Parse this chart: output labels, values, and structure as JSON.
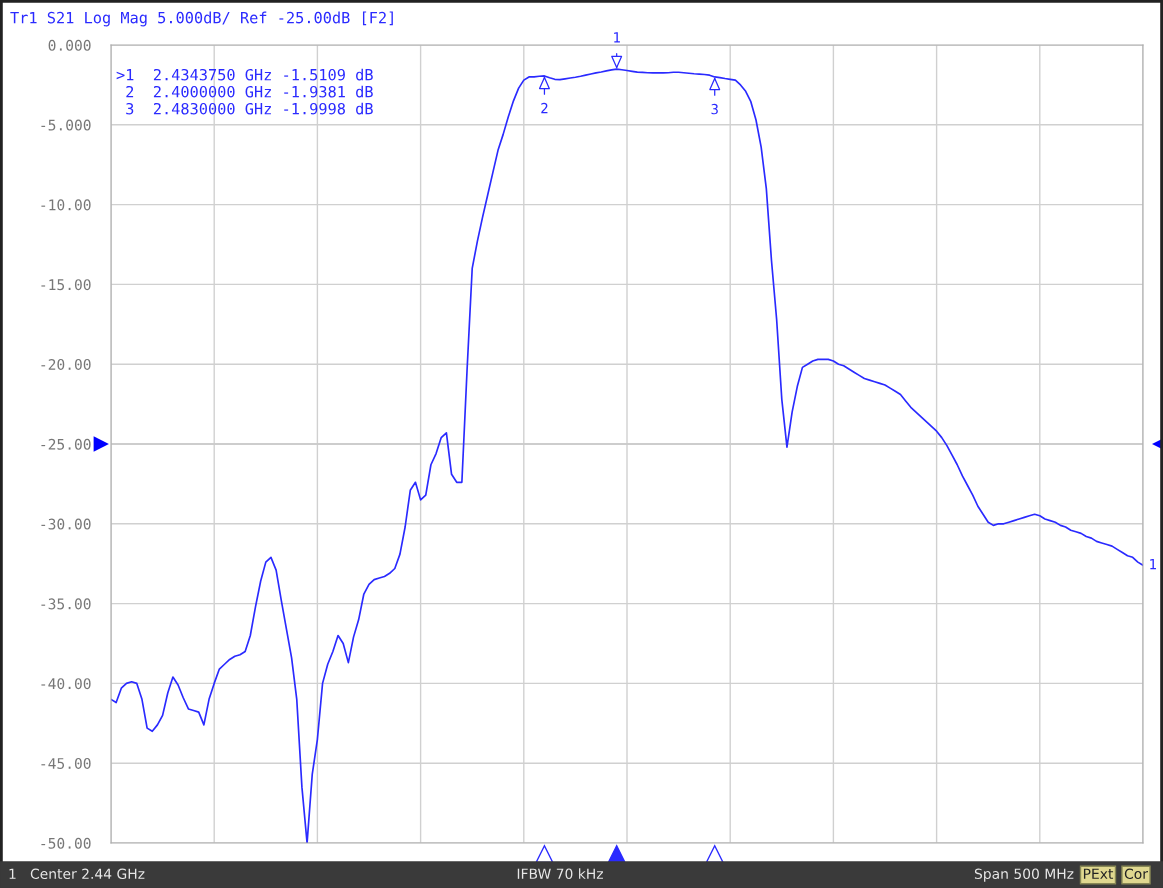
{
  "chart_data": {
    "type": "line",
    "title": "Tr1 S21 Log Mag 5.000dB/ Ref -25.00dB [F2]",
    "categories": [
      null,
      null,
      null,
      null,
      null,
      null,
      null,
      null,
      null,
      null,
      null,
      null,
      null,
      null,
      null,
      null,
      null,
      null,
      null,
      null,
      null,
      null,
      null,
      null,
      null,
      null,
      null,
      null,
      null,
      null,
      null,
      null,
      null,
      null,
      null,
      null,
      null,
      null,
      null,
      null,
      null,
      null,
      null,
      null,
      null,
      null,
      null,
      null,
      null,
      null,
      null,
      null,
      null,
      null,
      null,
      null,
      null,
      null,
      null,
      null,
      null,
      null,
      null,
      null,
      null,
      null,
      null,
      null,
      null,
      null,
      null,
      null,
      null,
      null,
      null,
      null,
      null,
      null,
      null,
      null,
      null,
      null,
      null,
      null,
      null,
      null,
      null,
      null,
      null,
      null,
      null,
      null,
      null,
      null,
      null,
      null,
      null,
      null,
      null,
      null,
      null,
      null,
      null,
      null,
      null,
      null,
      null,
      null,
      null,
      null,
      null,
      null,
      null,
      null,
      null,
      null,
      null,
      null,
      null,
      null,
      null,
      null,
      null,
      null,
      null,
      null,
      null,
      null,
      null,
      null,
      null,
      null,
      null,
      null,
      null,
      null,
      null,
      null,
      null,
      null,
      null,
      null,
      null,
      null,
      null,
      null,
      null,
      null,
      null,
      null,
      null,
      null,
      null,
      null,
      null,
      null,
      null,
      null,
      null,
      null,
      null,
      null,
      null,
      null,
      null,
      null,
      null,
      null,
      null,
      null,
      null,
      null,
      null,
      null,
      null,
      null,
      null,
      null,
      null,
      null,
      null,
      null,
      null,
      null,
      null,
      null,
      null,
      null,
      null,
      null,
      null,
      null,
      null,
      null,
      null,
      null,
      null,
      null,
      null,
      null,
      null
    ],
    "series": [
      {
        "name": "1",
        "color": "#2a2aff",
        "values": [
          -41.0,
          -41.2,
          -40.3,
          -40.0,
          -39.9,
          -40.0,
          -41.0,
          -42.8,
          -43.0,
          -42.6,
          -42.0,
          -40.6,
          -39.6,
          -40.1,
          -40.9,
          -41.6,
          -41.7,
          -41.8,
          -42.6,
          -41.0,
          -40.0,
          -39.1,
          -38.8,
          -38.5,
          -38.3,
          -38.2,
          -38.0,
          -37.0,
          -35.2,
          -33.6,
          -32.4,
          -32.1,
          -32.9,
          -34.8,
          -36.6,
          -38.4,
          -41.0,
          -46.5,
          -50.0,
          -45.7,
          -43.5,
          -40.0,
          -38.8,
          -38.0,
          -37.0,
          -37.5,
          -38.7,
          -37.1,
          -36.0,
          -34.4,
          -33.8,
          -33.5,
          -33.4,
          -33.3,
          -33.1,
          -32.8,
          -31.9,
          -30.2,
          -27.9,
          -27.4,
          -28.5,
          -28.2,
          -26.3,
          -25.6,
          -24.6,
          -24.3,
          -26.9,
          -27.4,
          -27.4,
          -20.4,
          -14.0,
          -12.3,
          -10.8,
          -9.4,
          -8.0,
          -6.6,
          -5.6,
          -4.5,
          -3.5,
          -2.7,
          -2.2,
          -2.0,
          -2.0,
          -1.96,
          -1.9381,
          -2.05,
          -2.15,
          -2.17,
          -2.12,
          -2.07,
          -2.02,
          -1.96,
          -1.89,
          -1.82,
          -1.75,
          -1.69,
          -1.62,
          -1.56,
          -1.5109,
          -1.55,
          -1.6,
          -1.65,
          -1.7,
          -1.72,
          -1.74,
          -1.75,
          -1.75,
          -1.75,
          -1.74,
          -1.71,
          -1.71,
          -1.74,
          -1.77,
          -1.8,
          -1.82,
          -1.85,
          -1.89,
          -1.9998,
          -2.04,
          -2.1,
          -2.15,
          -2.2,
          -2.5,
          -2.9,
          -3.55,
          -4.7,
          -6.4,
          -9.0,
          -13.5,
          -17.2,
          -22.2,
          -25.2,
          -23.0,
          -21.4,
          -20.2,
          -20.0,
          -19.8,
          -19.7,
          -19.7,
          -19.7,
          -19.8,
          -20.0,
          -20.1,
          -20.3,
          -20.5,
          -20.7,
          -20.9,
          -21.0,
          -21.1,
          -21.2,
          -21.3,
          -21.5,
          -21.7,
          -21.9,
          -22.3,
          -22.7,
          -23.0,
          -23.3,
          -23.6,
          -23.9,
          -24.2,
          -24.6,
          -25.1,
          -25.7,
          -26.3,
          -27.0,
          -27.6,
          -28.2,
          -28.9,
          -29.4,
          -29.9,
          -30.1,
          -30.0,
          -30.0,
          -29.9,
          -29.8,
          -29.7,
          -29.6,
          -29.5,
          -29.4,
          -29.5,
          -29.7,
          -29.8,
          -29.9,
          -30.1,
          -30.2,
          -30.4,
          -30.5,
          -30.6,
          -30.8,
          -30.9,
          -31.1,
          -31.2,
          -31.3,
          -31.4,
          -31.6,
          -31.8,
          -32.0,
          -32.1,
          -32.4,
          -32.6
        ]
      }
    ],
    "ylim": [
      -50,
      0
    ],
    "yticks": [
      {
        "value": 0,
        "label": "0.000"
      },
      {
        "value": -5,
        "label": "-5.000"
      },
      {
        "value": -10,
        "label": "-10.00"
      },
      {
        "value": -15,
        "label": "-15.00"
      },
      {
        "value": -20,
        "label": "-20.00"
      },
      {
        "value": -25,
        "label": "-25.00"
      },
      {
        "value": -30,
        "label": "-30.00"
      },
      {
        "value": -35,
        "label": "-35.00"
      },
      {
        "value": -40,
        "label": "-40.00"
      },
      {
        "value": -45,
        "label": "-45.00"
      },
      {
        "value": -50,
        "label": "-50.00"
      }
    ],
    "grid": true,
    "ref_lines": [
      {
        "axis": "y",
        "value": -25,
        "color": "#c8c8c8"
      }
    ],
    "annotations": [
      ">1  2.4343750 GHz -1.5109 dB",
      " 2  2.4000000 GHz -1.9381 dB",
      " 3  2.4830000 GHz -1.9998 dB",
      "1",
      "Center 2.44 GHz",
      "IFBW 70 kHz",
      "Span 500 MHz",
      "PExt",
      "Cor",
      {
        "text": "1",
        "y": -1.5109
      },
      {
        "text": "2",
        "y": -1.9381
      },
      {
        "text": "3",
        "y": -1.9998
      }
    ]
  }
}
